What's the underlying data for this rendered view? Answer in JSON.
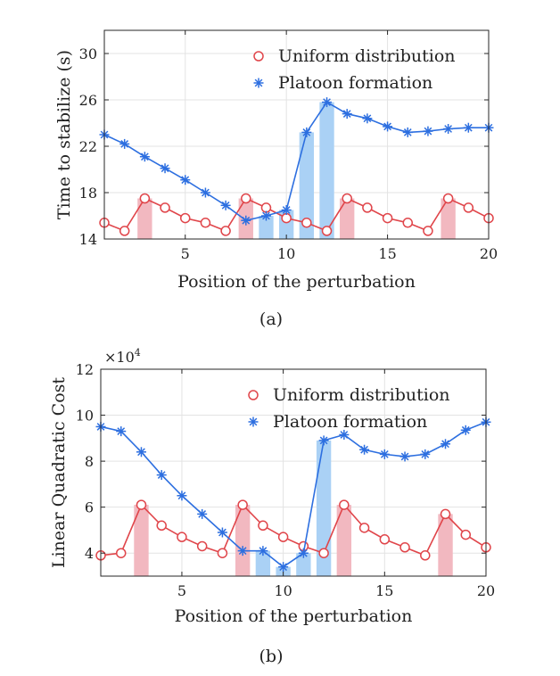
{
  "chart_data": [
    {
      "type": "line",
      "caption": "(a)",
      "xlabel": "Position of the perturbation",
      "ylabel": "Time to stabilize (s)",
      "xlim": [
        1,
        20
      ],
      "ylim": [
        14,
        32
      ],
      "xticks": [
        5,
        10,
        15,
        20
      ],
      "yticks": [
        14,
        18,
        22,
        26,
        30
      ],
      "x": [
        1,
        2,
        3,
        4,
        5,
        6,
        7,
        8,
        9,
        10,
        11,
        12,
        13,
        14,
        15,
        16,
        17,
        18,
        19,
        20
      ],
      "series": [
        {
          "name": "Uniform distribution",
          "marker": "circle",
          "color": "#e0454a",
          "values": [
            15.4,
            14.7,
            17.5,
            16.7,
            15.8,
            15.4,
            14.7,
            17.5,
            16.7,
            15.8,
            15.4,
            14.7,
            17.5,
            16.7,
            15.8,
            15.4,
            14.7,
            17.5,
            16.7,
            15.8
          ]
        },
        {
          "name": "Platoon formation",
          "marker": "asterisk",
          "color": "#2d6fe0",
          "values": [
            23.0,
            22.2,
            21.1,
            20.1,
            19.1,
            18.0,
            16.9,
            15.6,
            16.0,
            16.5,
            23.2,
            25.8,
            24.8,
            24.4,
            23.7,
            23.2,
            23.3,
            23.5,
            23.6,
            23.6
          ]
        }
      ],
      "bars": [
        {
          "x": 3,
          "value": 17.5,
          "color": "#f2b8c0"
        },
        {
          "x": 8,
          "value": 17.5,
          "color": "#f2b8c0"
        },
        {
          "x": 9,
          "value": 16.0,
          "color": "#aad1f5"
        },
        {
          "x": 10,
          "value": 16.5,
          "color": "#aad1f5"
        },
        {
          "x": 11,
          "value": 23.2,
          "color": "#aad1f5"
        },
        {
          "x": 12,
          "value": 25.8,
          "color": "#aad1f5"
        },
        {
          "x": 13,
          "value": 17.5,
          "color": "#f2b8c0"
        },
        {
          "x": 18,
          "value": 17.5,
          "color": "#f2b8c0"
        }
      ],
      "legend": "top-right",
      "grid": true
    },
    {
      "type": "line",
      "caption": "(b)",
      "xlabel": "Position of the perturbation",
      "ylabel": "Linear Quadratic Cost",
      "exponent_label": "×10",
      "exponent_power": "4",
      "xlim": [
        1,
        20
      ],
      "ylim": [
        3,
        12
      ],
      "xticks": [
        5,
        10,
        15,
        20
      ],
      "yticks": [
        4,
        6,
        8,
        10,
        12
      ],
      "x": [
        1,
        2,
        3,
        4,
        5,
        6,
        7,
        8,
        9,
        10,
        11,
        12,
        13,
        14,
        15,
        16,
        17,
        18,
        19,
        20
      ],
      "series": [
        {
          "name": "Uniform distribution",
          "marker": "circle",
          "color": "#e0454a",
          "values": [
            3.9,
            4.0,
            6.1,
            5.2,
            4.7,
            4.3,
            4.0,
            6.1,
            5.2,
            4.7,
            4.3,
            4.0,
            6.1,
            5.1,
            4.6,
            4.25,
            3.9,
            5.7,
            4.8,
            4.25
          ]
        },
        {
          "name": "Platoon formation",
          "marker": "asterisk",
          "color": "#2d6fe0",
          "values": [
            9.5,
            9.3,
            8.4,
            7.4,
            6.5,
            5.7,
            4.9,
            4.1,
            4.1,
            3.4,
            4.0,
            8.9,
            9.15,
            8.5,
            8.3,
            8.2,
            8.3,
            8.75,
            9.35,
            9.7
          ]
        }
      ],
      "bars": [
        {
          "x": 3,
          "value": 6.1,
          "color": "#f2b8c0"
        },
        {
          "x": 8,
          "value": 6.1,
          "color": "#f2b8c0"
        },
        {
          "x": 9,
          "value": 4.1,
          "color": "#aad1f5"
        },
        {
          "x": 10,
          "value": 3.4,
          "color": "#aad1f5"
        },
        {
          "x": 11,
          "value": 4.0,
          "color": "#aad1f5"
        },
        {
          "x": 12,
          "value": 8.9,
          "color": "#aad1f5"
        },
        {
          "x": 13,
          "value": 6.1,
          "color": "#f2b8c0"
        },
        {
          "x": 18,
          "value": 5.7,
          "color": "#f2b8c0"
        }
      ],
      "legend": "top-right",
      "grid": true
    }
  ]
}
